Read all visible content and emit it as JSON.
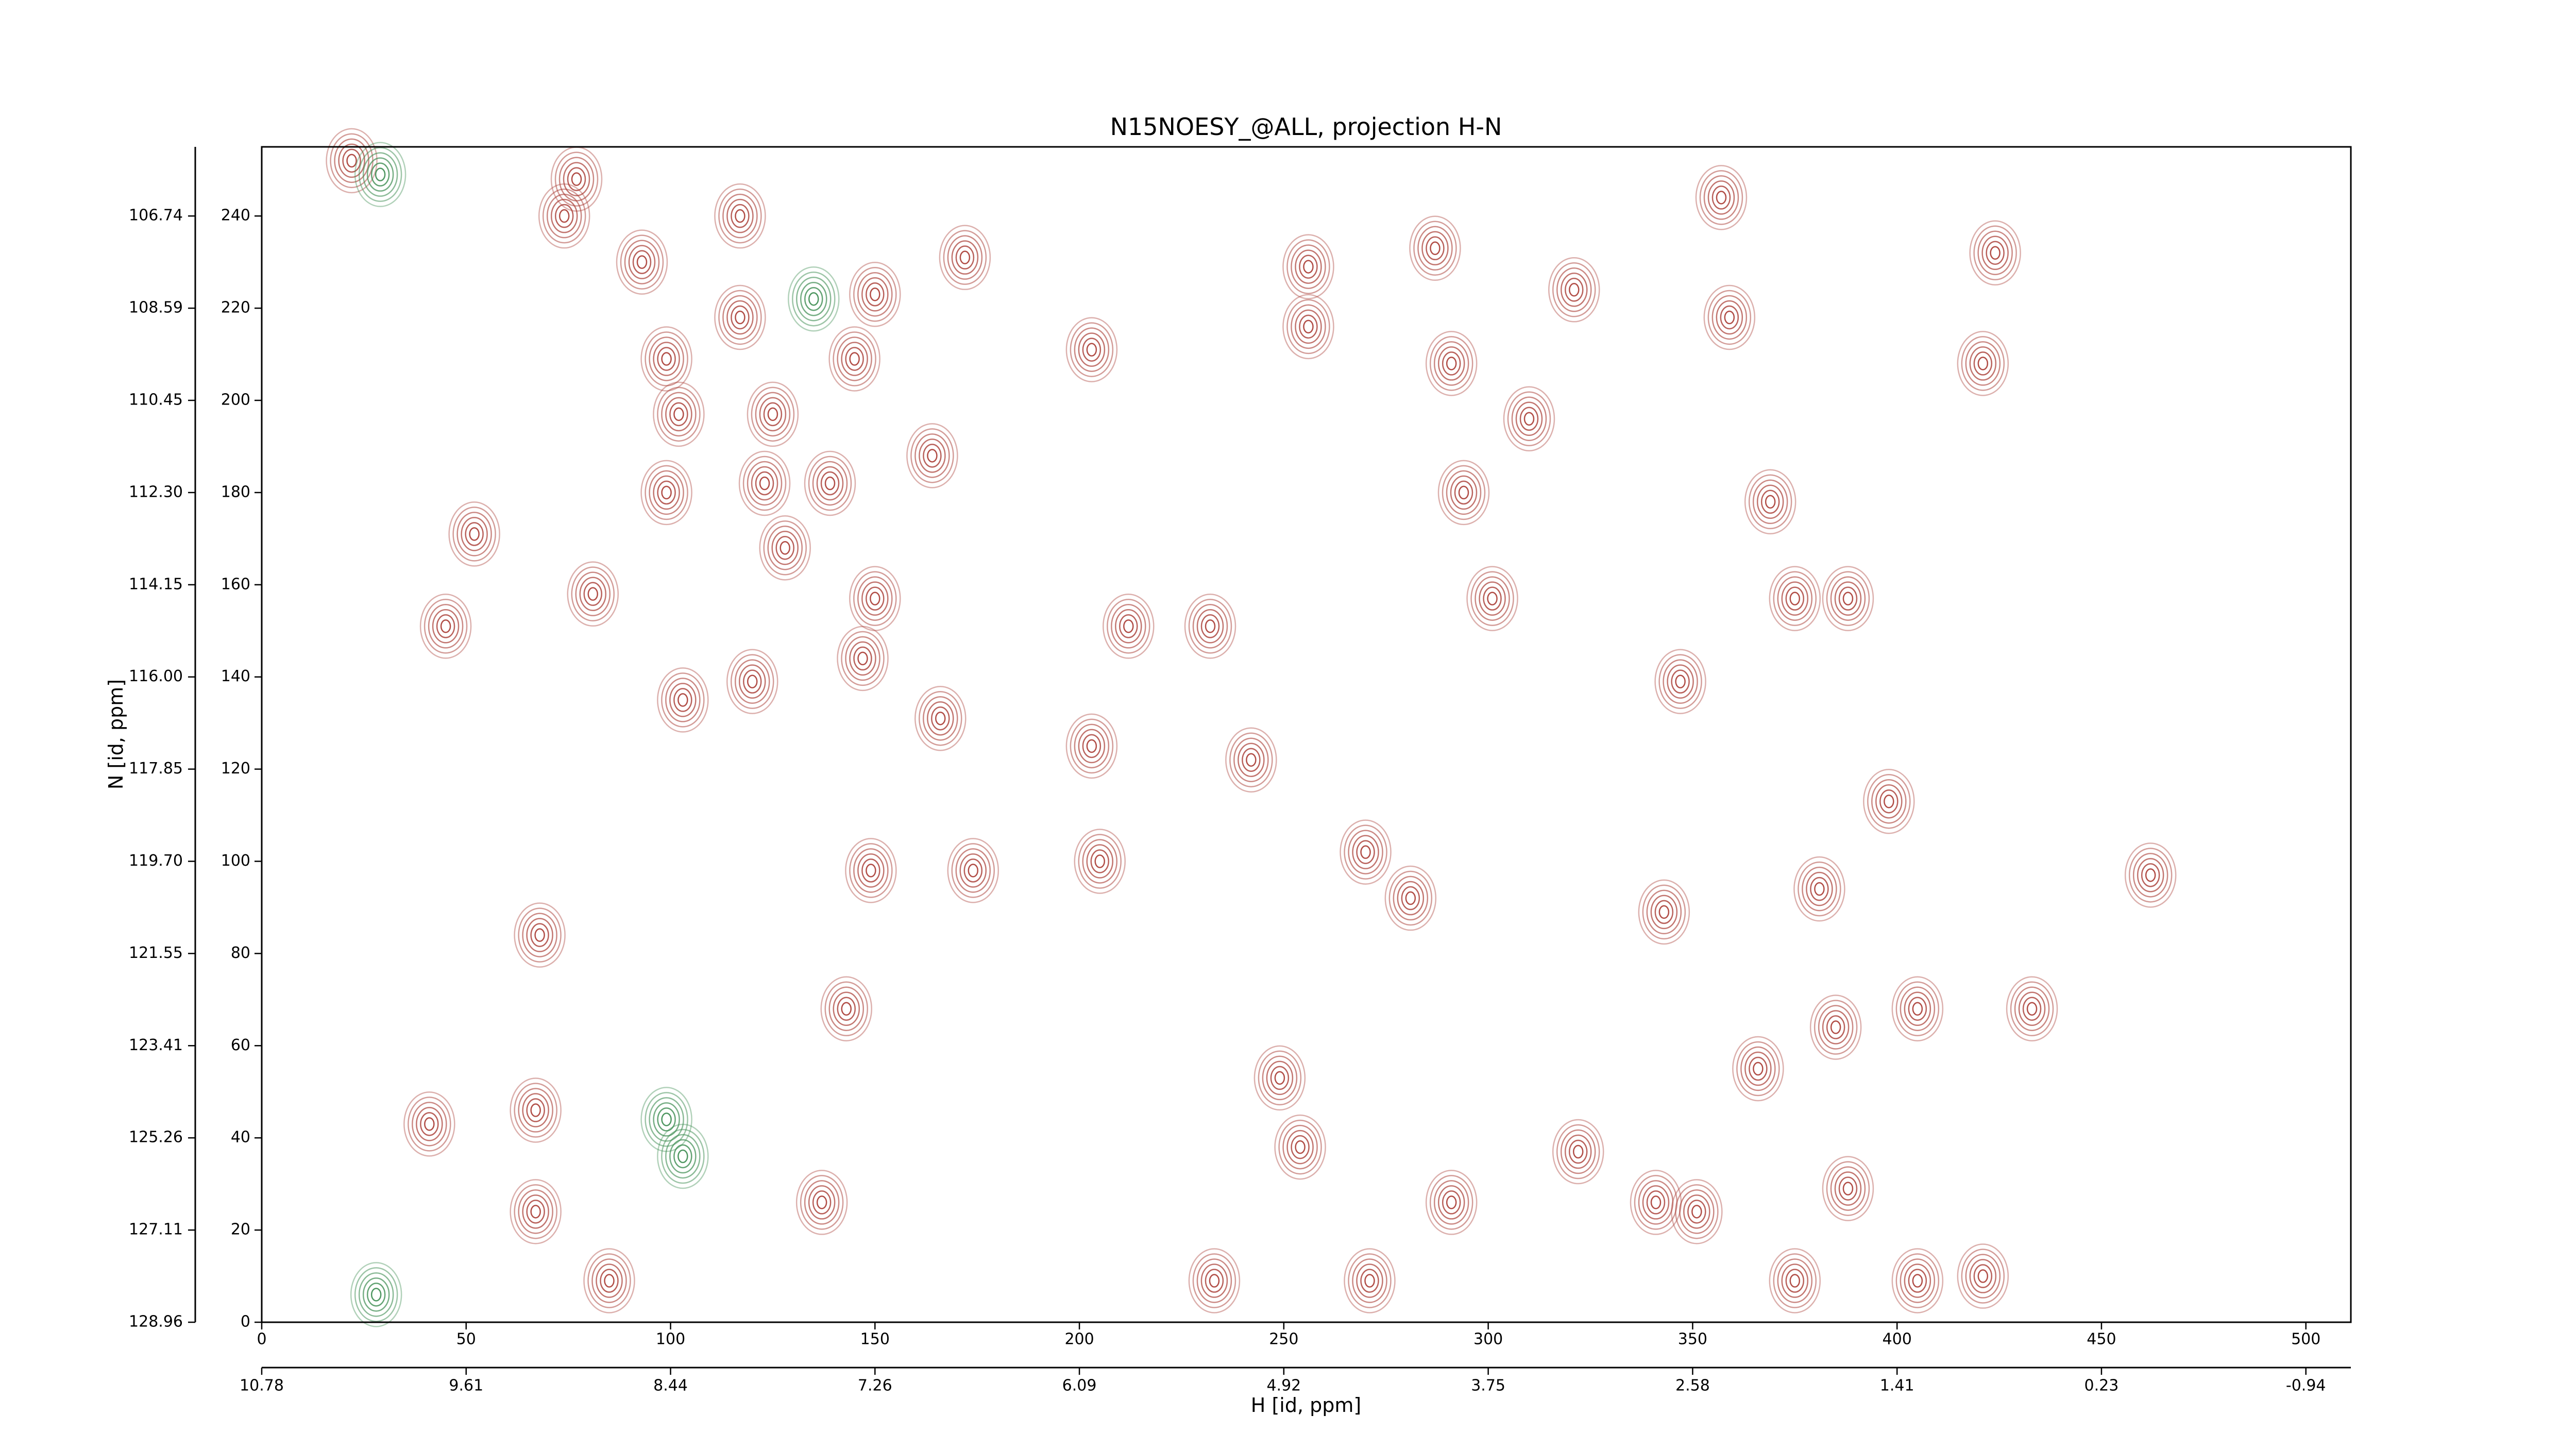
{
  "chart_data": {
    "type": "contour",
    "title": "N15NOESY_@ALL, projection H-N",
    "xlabel": "H [id, ppm]",
    "ylabel": "N [id, ppm]",
    "xlim": [
      0,
      511
    ],
    "ylim": [
      0,
      255
    ],
    "xticks": [
      0,
      50,
      100,
      150,
      200,
      250,
      300,
      350,
      400,
      450,
      500
    ],
    "yticks": [
      0,
      20,
      40,
      60,
      80,
      100,
      120,
      140,
      160,
      180,
      200,
      220,
      240
    ],
    "x2ticks": [
      {
        "value": 0,
        "label": "10.78"
      },
      {
        "value": 50,
        "label": "9.61"
      },
      {
        "value": 100,
        "label": "8.44"
      },
      {
        "value": 150,
        "label": "7.26"
      },
      {
        "value": 200,
        "label": "6.09"
      },
      {
        "value": 250,
        "label": "4.92"
      },
      {
        "value": 300,
        "label": "3.75"
      },
      {
        "value": 350,
        "label": "2.58"
      },
      {
        "value": 400,
        "label": "1.41"
      },
      {
        "value": 450,
        "label": "0.23"
      },
      {
        "value": 500,
        "label": "-0.94"
      }
    ],
    "y2ticks": [
      {
        "value": 0,
        "label": "128.96"
      },
      {
        "value": 20,
        "label": "127.11"
      },
      {
        "value": 40,
        "label": "125.26"
      },
      {
        "value": 60,
        "label": "123.41"
      },
      {
        "value": 80,
        "label": "121.55"
      },
      {
        "value": 100,
        "label": "119.70"
      },
      {
        "value": 120,
        "label": "117.85"
      },
      {
        "value": 140,
        "label": "116.00"
      },
      {
        "value": 160,
        "label": "114.15"
      },
      {
        "value": 180,
        "label": "112.30"
      },
      {
        "value": 200,
        "label": "110.45"
      },
      {
        "value": 220,
        "label": "108.59"
      },
      {
        "value": 240,
        "label": "106.74"
      }
    ],
    "series": [
      {
        "color": "#a83a32",
        "x": [
          22,
          77,
          74,
          93,
          117,
          150,
          172,
          117,
          99,
          102,
          125,
          203,
          145,
          139,
          164,
          123,
          99,
          52,
          81,
          45,
          150,
          128,
          212,
          232,
          203,
          120,
          103,
          166,
          147,
          174,
          205,
          149,
          143,
          68,
          41,
          67,
          137,
          67,
          85,
          256,
          256,
          287,
          291,
          310,
          294,
          301,
          242,
          270,
          281,
          343,
          347,
          398,
          381,
          385,
          405,
          424,
          421,
          388,
          375,
          369,
          359,
          357,
          321,
          433,
          366,
          341,
          388,
          421,
          405,
          375,
          351,
          322,
          271,
          233,
          249,
          254,
          291,
          462
        ],
        "y": [
          252,
          248,
          240,
          230,
          240,
          223,
          231,
          218,
          209,
          197,
          197,
          211,
          209,
          182,
          188,
          182,
          180,
          171,
          158,
          151,
          157,
          168,
          151,
          151,
          125,
          139,
          135,
          131,
          144,
          98,
          100,
          98,
          68,
          84,
          43,
          46,
          26,
          24,
          9,
          229,
          216,
          233,
          208,
          196,
          180,
          157,
          122,
          102,
          92,
          89,
          139,
          113,
          94,
          64,
          68,
          232,
          208,
          157,
          157,
          178,
          218,
          244,
          224,
          68,
          55,
          26,
          29,
          10,
          9,
          9,
          24,
          37,
          9,
          9,
          53,
          38,
          26,
          97
        ]
      },
      {
        "color": "#3c8c50",
        "x": [
          29,
          135,
          103,
          28,
          99
        ],
        "y": [
          249,
          222,
          36,
          6,
          44
        ]
      }
    ]
  }
}
